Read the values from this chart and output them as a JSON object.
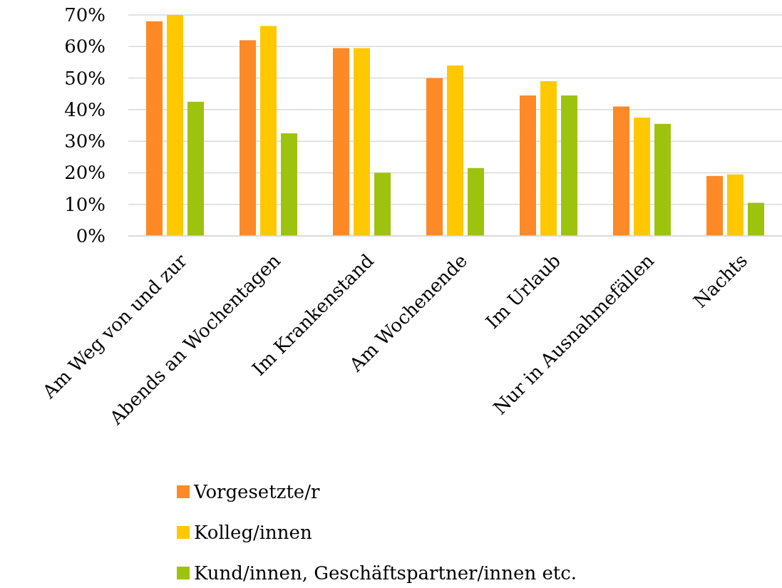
{
  "chart_data": {
    "type": "bar",
    "categories": [
      "Am Weg von und zur",
      "Abends an Wochentagen",
      "Im Krankenstand",
      "Am Wochenende",
      "Im Urlaub",
      "Nur in Ausnahmefällen",
      "Nachts"
    ],
    "series": [
      {
        "name": "Vorgesetzte/r",
        "color": "#fd8a27",
        "values": [
          68,
          62,
          59.5,
          50,
          44.5,
          41,
          19
        ]
      },
      {
        "name": "Kolleg/innen",
        "color": "#ffc800",
        "values": [
          70,
          66.5,
          59.5,
          54,
          49,
          37.5,
          19.5
        ]
      },
      {
        "name": "Kund/innen, Geschäftspartner/innen etc.",
        "color": "#9dc30e",
        "values": [
          42.5,
          32.5,
          20,
          21.5,
          44.5,
          35.5,
          10.5
        ]
      }
    ],
    "ylim": [
      0,
      70
    ],
    "yticks": [
      {
        "value": 0,
        "label": "0%"
      },
      {
        "value": 10,
        "label": "10%"
      },
      {
        "value": 20,
        "label": "20%"
      },
      {
        "value": 30,
        "label": "30%"
      },
      {
        "value": 40,
        "label": "40%"
      },
      {
        "value": 50,
        "label": "50%"
      },
      {
        "value": 60,
        "label": "60%"
      },
      {
        "value": 70,
        "label": "70%"
      }
    ],
    "grid": "y",
    "legend": "bottom"
  }
}
